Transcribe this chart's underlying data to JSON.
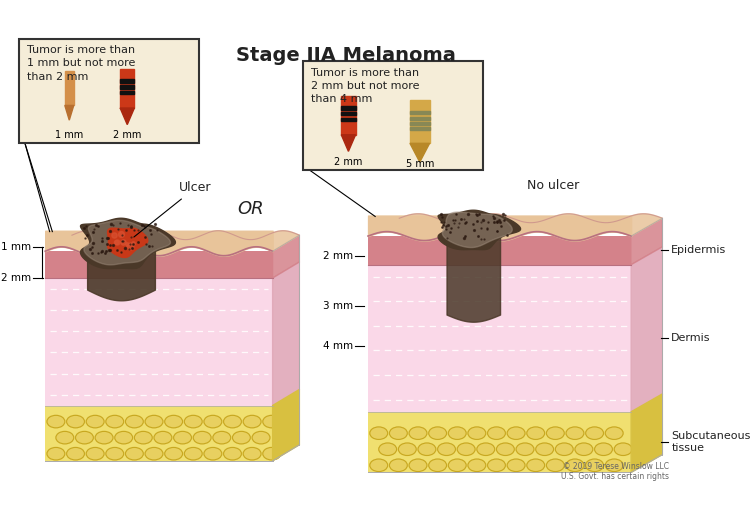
{
  "title": "Stage IIA Melanoma",
  "title_fontsize": 14,
  "title_fontweight": "bold",
  "background_color": "#ffffff",
  "left_box_text": "Tumor is more than\n1 mm but not more\nthan 2 mm",
  "right_box_text": "Tumor is more than\n2 mm but not more\nthan 4 mm",
  "or_text": "OR",
  "ulcer_text": "Ulcer",
  "no_ulcer_text": "No ulcer",
  "epidermis_text": "Epidermis",
  "dermis_text": "Dermis",
  "subcutaneous_text": "Subcutaneous\ntissue",
  "copyright_text": "© 2019 Terese Winslow LLC\nU.S. Govt. has certain rights",
  "skin_top_color": "#e8c49a",
  "skin_top_shadow": "#d4aa80",
  "epidermis_color": "#d4828a",
  "epidermis_light": "#e8a0a8",
  "dermis_color": "#f0c8d8",
  "dermis_light_color": "#fad8e8",
  "subcut_color": "#f0e070",
  "subcut_fill": "#e8d060",
  "subcut_dark_color": "#c8a820",
  "subcut_side": "#d8c040",
  "tumor_dark": "#4a3828",
  "tumor_mid": "#7a5838",
  "tumor_red": "#c83818",
  "tumor_redlight": "#d85030",
  "tumor_gray": "#9a8878",
  "box_bg_color": "#f5edd8",
  "box_border_color": "#333333",
  "pencil1_body": "#d4904a",
  "pencil1_tip": "#b87030",
  "pencil2_body": "#cc3818",
  "pencil2_band": "#111111",
  "pencil3_body": "#cc3818",
  "pencil3_band": "#111111",
  "pencil4_body": "#d4a848",
  "pencil4_tip": "#b88828",
  "white": "#ffffff",
  "black": "#000000",
  "gray_line": "#aaaaaa",
  "dark_text": "#222222"
}
